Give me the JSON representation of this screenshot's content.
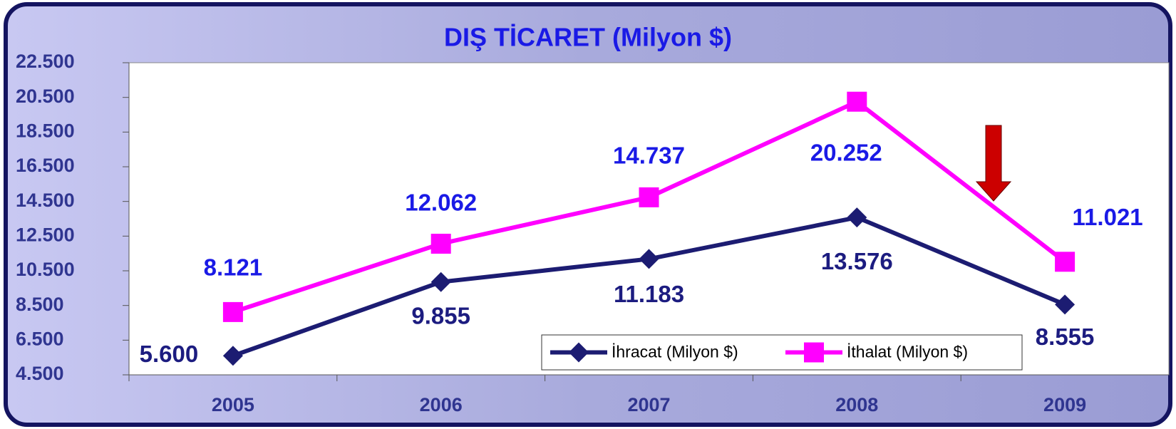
{
  "chart_data": {
    "type": "line",
    "title": "DIŞ TİCARET (Milyon $)",
    "categories": [
      "2005",
      "2006",
      "2007",
      "2008",
      "2009"
    ],
    "series": [
      {
        "name": "İhracat (Milyon $)",
        "color": "#1c1c72",
        "values": [
          5600,
          9855,
          11183,
          13576,
          8555
        ],
        "value_labels": [
          "5.600",
          "9.855",
          "11.183",
          "13.576",
          "8.555"
        ]
      },
      {
        "name": "İthalat (Milyon $)",
        "color": "#ff00ff",
        "values": [
          8121,
          12062,
          14737,
          20252,
          11021
        ],
        "value_labels": [
          "8.121",
          "12.062",
          "14.737",
          "20.252",
          "11.021"
        ]
      }
    ],
    "ylim": [
      4500,
      22500
    ],
    "yticks": [
      {
        "value": 4500,
        "label": "4.500"
      },
      {
        "value": 6500,
        "label": "6.500"
      },
      {
        "value": 8500,
        "label": "8.500"
      },
      {
        "value": 10500,
        "label": "10.500"
      },
      {
        "value": 12500,
        "label": "12.500"
      },
      {
        "value": 14500,
        "label": "14.500"
      },
      {
        "value": 16500,
        "label": "16.500"
      },
      {
        "value": 18500,
        "label": "18.500"
      },
      {
        "value": 20500,
        "label": "20.500"
      },
      {
        "value": 22500,
        "label": "22.500"
      }
    ],
    "grid": false,
    "legend": "bottom-right"
  }
}
